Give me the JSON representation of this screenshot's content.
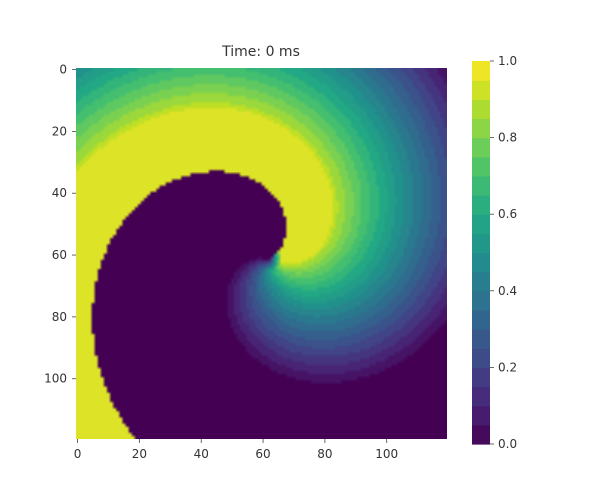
{
  "chart_data": {
    "type": "heatmap",
    "title": "Time: 0 ms",
    "xlabel": "",
    "ylabel": "",
    "grid": false,
    "colormap": "viridis",
    "grid_size": [
      120,
      120
    ],
    "xlim": [
      0,
      119
    ],
    "ylim": [
      119,
      0
    ],
    "x_ticks": [
      0,
      20,
      40,
      60,
      80,
      100
    ],
    "y_ticks": [
      0,
      20,
      40,
      60,
      80,
      100
    ],
    "value_range": [
      0.0,
      1.0
    ],
    "colorbar": {
      "ticks": [
        0.0,
        0.2,
        0.4,
        0.6,
        0.8,
        1.0
      ],
      "tick_labels": [
        "0.0",
        "0.2",
        "0.4",
        "0.6",
        "0.8",
        "1.0"
      ],
      "levels": 20
    },
    "pattern": {
      "kind": "spiral-wave",
      "spiral_center": [
        62,
        61
      ],
      "wavelength": 128,
      "wavefront_value": 0.95,
      "background_value": 0.0
    }
  },
  "colors": {
    "viridis_low": "#440154",
    "viridis_mid": "#21918c",
    "viridis_high": "#fde725"
  }
}
